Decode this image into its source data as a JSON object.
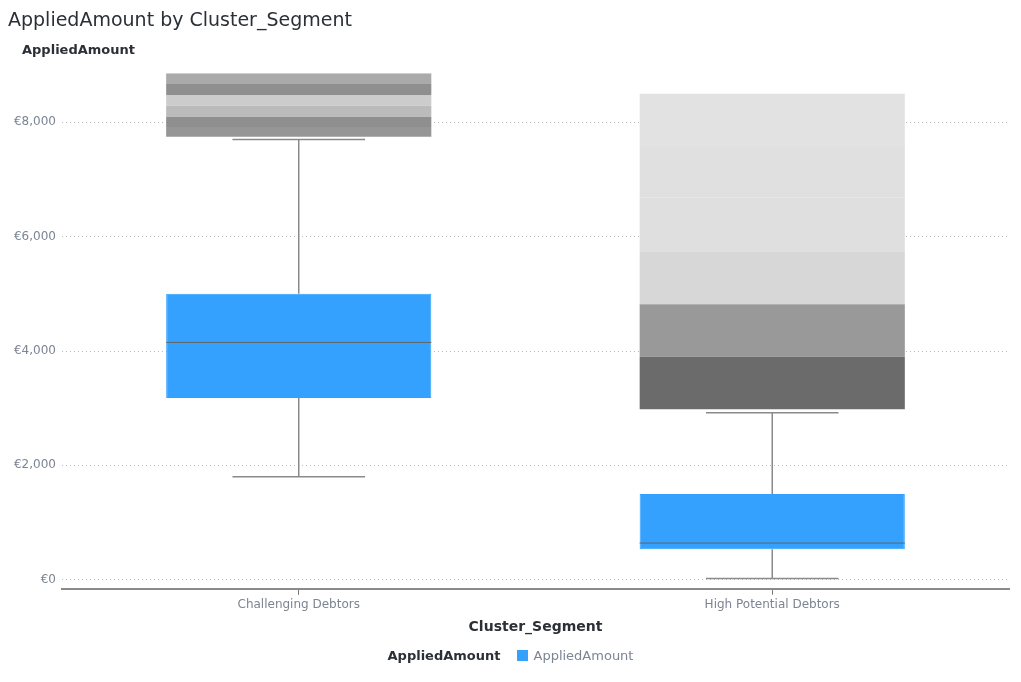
{
  "chart_data": {
    "type": "box",
    "title": "AppliedAmount by Cluster_Segment",
    "xlabel": "Cluster_Segment",
    "ylabel": "AppliedAmount",
    "legend_title": "AppliedAmount",
    "legend": "bottom",
    "grid": "y",
    "categories": [
      "Challenging Debtors",
      "High Potential Debtors"
    ],
    "ylim": [
      -160,
      8860
    ],
    "yticks": [
      {
        "value": 0,
        "label": "€0"
      },
      {
        "value": 2000,
        "label": "€2,000"
      },
      {
        "value": 4000,
        "label": "€4,000"
      },
      {
        "value": 6000,
        "label": "€6,000"
      },
      {
        "value": 8000,
        "label": "€8,000"
      }
    ],
    "series": [
      {
        "type": "box",
        "name": "AppliedAmount",
        "color": "#33a1fd",
        "boxes": [
          {
            "low": 1800,
            "q1": 3180,
            "median": 4150,
            "q3": 5000,
            "high": 7700
          },
          {
            "low": 20,
            "q1": 530,
            "median": 640,
            "q3": 1500,
            "high": 2920
          }
        ]
      },
      {
        "type": "bar",
        "base": [
          7750,
          2980
        ],
        "values": [
          170,
          920
        ],
        "colors": [
          "#969696",
          "#6b6b6b"
        ]
      },
      {
        "type": "bar",
        "base": [
          7920,
          3900
        ],
        "values": [
          180,
          920
        ],
        "colors": [
          "#8f8f8f",
          "#999999"
        ]
      },
      {
        "type": "bar",
        "base": [
          8100,
          4820
        ],
        "values": [
          190,
          910
        ],
        "colors": [
          "#bbbbbb",
          "#d7d7d7"
        ]
      },
      {
        "type": "bar",
        "base": [
          8290,
          5730
        ],
        "values": [
          190,
          950
        ],
        "colors": [
          "#cccccc",
          "#dfdfdf"
        ]
      },
      {
        "type": "bar",
        "base": [
          8480,
          6680
        ],
        "values": [
          190,
          890
        ],
        "colors": [
          "#8f8f8f",
          "#e0e0e0"
        ]
      },
      {
        "type": "bar",
        "base": [
          8670,
          7570
        ],
        "values": [
          190,
          930
        ],
        "colors": [
          "#aaaaaa",
          "#e2e2e2"
        ]
      }
    ]
  }
}
